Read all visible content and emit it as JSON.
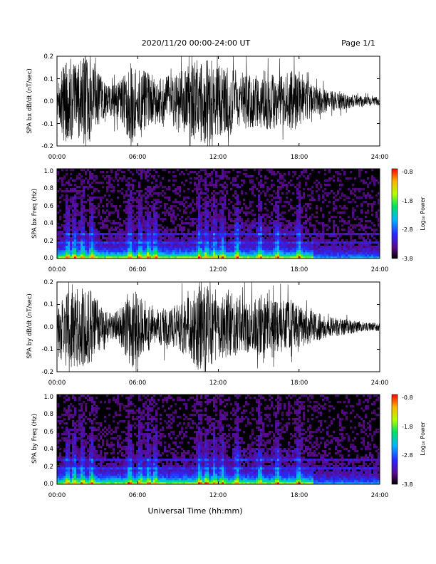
{
  "header": {
    "title": "2020/11/20  00:00-24:00 UT",
    "page": "Page 1/1"
  },
  "footer": {
    "xlabel": "Universal Time (hh:mm)"
  },
  "chart_data": [
    {
      "type": "line",
      "ylabel": "SPA bx dB/dt (nT/sec)",
      "x_ticks": [
        "00:00",
        "06:00",
        "12:00",
        "18:00",
        "24:00"
      ],
      "y_ticks": [
        "0.2",
        "0.1",
        "0.0",
        "-0.1",
        "-0.2"
      ],
      "xlim_hours": [
        0,
        24
      ],
      "ylim": [
        -0.2,
        0.2
      ],
      "series": [
        {
          "values": [
            {
              "x": 0.0,
              "y": 0.05
            },
            {
              "x": 0.5,
              "y": 0.18
            },
            {
              "x": 1.0,
              "y": 0.2
            },
            {
              "x": 1.5,
              "y": 0.16
            },
            {
              "x": 2.0,
              "y": 0.2
            },
            {
              "x": 2.5,
              "y": 0.18
            },
            {
              "x": 3.0,
              "y": 0.13
            },
            {
              "x": 3.5,
              "y": 0.1
            },
            {
              "x": 4.0,
              "y": 0.07
            },
            {
              "x": 4.5,
              "y": 0.08
            },
            {
              "x": 5.0,
              "y": 0.12
            },
            {
              "x": 5.5,
              "y": 0.2
            },
            {
              "x": 6.0,
              "y": 0.15
            },
            {
              "x": 6.5,
              "y": 0.14
            },
            {
              "x": 7.0,
              "y": 0.12
            },
            {
              "x": 7.5,
              "y": 0.1
            },
            {
              "x": 8.0,
              "y": 0.12
            },
            {
              "x": 8.5,
              "y": 0.11
            },
            {
              "x": 9.0,
              "y": 0.13
            },
            {
              "x": 9.5,
              "y": 0.15
            },
            {
              "x": 10.0,
              "y": 0.17
            },
            {
              "x": 10.5,
              "y": 0.2
            },
            {
              "x": 11.0,
              "y": 0.2
            },
            {
              "x": 11.5,
              "y": 0.18
            },
            {
              "x": 12.0,
              "y": 0.17
            },
            {
              "x": 12.5,
              "y": 0.15
            },
            {
              "x": 13.0,
              "y": 0.15
            },
            {
              "x": 13.5,
              "y": 0.14
            },
            {
              "x": 14.0,
              "y": 0.13
            },
            {
              "x": 14.5,
              "y": 0.12
            },
            {
              "x": 15.0,
              "y": 0.13
            },
            {
              "x": 15.5,
              "y": 0.14
            },
            {
              "x": 16.0,
              "y": 0.12
            },
            {
              "x": 16.5,
              "y": 0.11
            },
            {
              "x": 17.0,
              "y": 0.12
            },
            {
              "x": 17.5,
              "y": 0.14
            },
            {
              "x": 18.0,
              "y": 0.11
            },
            {
              "x": 18.5,
              "y": 0.09
            },
            {
              "x": 19.0,
              "y": 0.07
            },
            {
              "x": 19.5,
              "y": 0.06
            },
            {
              "x": 20.0,
              "y": 0.05
            },
            {
              "x": 20.5,
              "y": 0.045
            },
            {
              "x": 21.0,
              "y": 0.04
            },
            {
              "x": 21.5,
              "y": 0.035
            },
            {
              "x": 22.0,
              "y": 0.03
            },
            {
              "x": 22.5,
              "y": 0.025
            },
            {
              "x": 23.0,
              "y": 0.02
            },
            {
              "x": 23.5,
              "y": 0.02
            },
            {
              "x": 24.0,
              "y": 0.02
            }
          ]
        }
      ]
    },
    {
      "type": "heatmap",
      "ylabel": "SPA bx Freq (Hz)",
      "colorbar_label": "Log₁₀ Power",
      "colorbar_ticks": [
        "-0.8",
        "-1.8",
        "-2.8",
        "-3.8"
      ],
      "x_ticks": [
        "00:00",
        "06:00",
        "12:00",
        "18:00",
        "24:00"
      ],
      "y_ticks": [
        "1.0",
        "0.8",
        "0.6",
        "0.4",
        "0.2",
        "0.0"
      ],
      "xlim_hours": [
        0,
        24
      ],
      "ylim": [
        0.0,
        1.0
      ],
      "clim": [
        -3.8,
        -0.8
      ]
    },
    {
      "type": "line",
      "ylabel": "SPA by dB/dt (nT/sec)",
      "x_ticks": [
        "00:00",
        "06:00",
        "12:00",
        "18:00",
        "24:00"
      ],
      "y_ticks": [
        "0.2",
        "0.1",
        "0.0",
        "-0.1",
        "-0.2"
      ],
      "xlim_hours": [
        0,
        24
      ],
      "ylim": [
        -0.2,
        0.2
      ],
      "series": [
        {
          "values": [
            {
              "x": 0.0,
              "y": 0.06
            },
            {
              "x": 0.5,
              "y": 0.14
            },
            {
              "x": 1.0,
              "y": 0.2
            },
            {
              "x": 1.5,
              "y": 0.18
            },
            {
              "x": 2.0,
              "y": 0.19
            },
            {
              "x": 2.5,
              "y": 0.17
            },
            {
              "x": 3.0,
              "y": 0.12
            },
            {
              "x": 3.5,
              "y": 0.08
            },
            {
              "x": 4.0,
              "y": 0.06
            },
            {
              "x": 4.5,
              "y": 0.07
            },
            {
              "x": 5.0,
              "y": 0.11
            },
            {
              "x": 5.5,
              "y": 0.2
            },
            {
              "x": 6.0,
              "y": 0.14
            },
            {
              "x": 6.5,
              "y": 0.12
            },
            {
              "x": 7.0,
              "y": 0.1
            },
            {
              "x": 7.5,
              "y": 0.08
            },
            {
              "x": 8.0,
              "y": 0.09
            },
            {
              "x": 8.5,
              "y": 0.09
            },
            {
              "x": 9.0,
              "y": 0.1
            },
            {
              "x": 9.5,
              "y": 0.13
            },
            {
              "x": 10.0,
              "y": 0.15
            },
            {
              "x": 10.5,
              "y": 0.2
            },
            {
              "x": 11.0,
              "y": 0.2
            },
            {
              "x": 11.5,
              "y": 0.18
            },
            {
              "x": 12.0,
              "y": 0.16
            },
            {
              "x": 12.5,
              "y": 0.15
            },
            {
              "x": 13.0,
              "y": 0.14
            },
            {
              "x": 13.5,
              "y": 0.13
            },
            {
              "x": 14.0,
              "y": 0.12
            },
            {
              "x": 14.5,
              "y": 0.12
            },
            {
              "x": 15.0,
              "y": 0.13
            },
            {
              "x": 15.5,
              "y": 0.13
            },
            {
              "x": 16.0,
              "y": 0.12
            },
            {
              "x": 16.5,
              "y": 0.11
            },
            {
              "x": 17.0,
              "y": 0.12
            },
            {
              "x": 17.5,
              "y": 0.11
            },
            {
              "x": 18.0,
              "y": 0.1
            },
            {
              "x": 18.5,
              "y": 0.08
            },
            {
              "x": 19.0,
              "y": 0.07
            },
            {
              "x": 19.5,
              "y": 0.06
            },
            {
              "x": 20.0,
              "y": 0.05
            },
            {
              "x": 20.5,
              "y": 0.045
            },
            {
              "x": 21.0,
              "y": 0.04
            },
            {
              "x": 21.5,
              "y": 0.035
            },
            {
              "x": 22.0,
              "y": 0.03
            },
            {
              "x": 22.5,
              "y": 0.025
            },
            {
              "x": 23.0,
              "y": 0.02
            },
            {
              "x": 23.5,
              "y": 0.02
            },
            {
              "x": 24.0,
              "y": 0.02
            }
          ]
        }
      ]
    },
    {
      "type": "heatmap",
      "ylabel": "SPA by Freq (Hz)",
      "colorbar_label": "Log₁₀ Power",
      "colorbar_ticks": [
        "-0.8",
        "-1.8",
        "-2.8",
        "-3.8"
      ],
      "x_ticks": [
        "00:00",
        "06:00",
        "12:00",
        "18:00",
        "24:00"
      ],
      "y_ticks": [
        "1.0",
        "0.8",
        "0.6",
        "0.4",
        "0.2",
        "0.0"
      ],
      "xlim_hours": [
        0,
        24
      ],
      "ylim": [
        0.0,
        1.0
      ],
      "clim": [
        -3.8,
        -0.8
      ]
    }
  ]
}
